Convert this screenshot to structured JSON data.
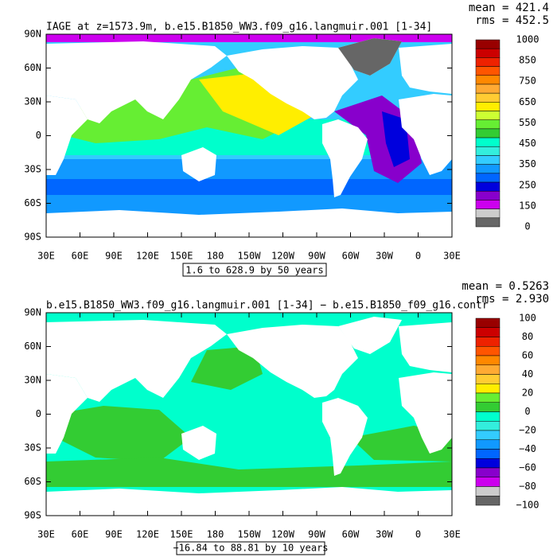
{
  "panels": [
    {
      "title": "IAGE at z=1573.9m, b.e15.B1850_WW3.f09_g16.langmuir.001 [1-34]",
      "mean": "mean = 421.4",
      "rms": "rms = 452.5",
      "range": "1.6 to 628.9 by 50 years",
      "colorbar": {
        "labels": [
          "1000",
          "850",
          "750",
          "650",
          "550",
          "450",
          "350",
          "250",
          "150",
          "0"
        ],
        "colors": [
          "#990000",
          "#cc0000",
          "#ee2200",
          "#ff5500",
          "#ff8800",
          "#ffaa33",
          "#ffcc33",
          "#ffee00",
          "#ccff33",
          "#66ee33",
          "#33cc33",
          "#00ffcc",
          "#33eedd",
          "#33ccff",
          "#1199ff",
          "#0066ff",
          "#0000dd",
          "#8800cc",
          "#cc00ee",
          "#cccccc",
          "#666666"
        ]
      }
    },
    {
      "title": "b.e15.B1850_WW3.f09_g16.langmuir.001 [1-34] − b.e15.B1850_f09_g16.contr",
      "mean": "mean = 0.5263",
      "rms": "rms = 2.930",
      "range": "−16.84 to 88.81 by 10 years",
      "colorbar": {
        "labels": [
          "100",
          "80",
          "60",
          "40",
          "20",
          "0",
          "−20",
          "−40",
          "−60",
          "−80",
          "−100"
        ],
        "colors": [
          "#990000",
          "#cc0000",
          "#ee2200",
          "#ff5500",
          "#ff8800",
          "#ffaa33",
          "#ffcc33",
          "#ffee00",
          "#66ee33",
          "#33cc33",
          "#00ffcc",
          "#33eedd",
          "#33ccff",
          "#1199ff",
          "#0066ff",
          "#0000dd",
          "#8800cc",
          "#cc00ee",
          "#cccccc",
          "#666666"
        ]
      }
    }
  ],
  "lat_labels": [
    "90N",
    "60N",
    "30N",
    "0",
    "30S",
    "60S",
    "90S"
  ],
  "lon_labels": [
    "30E",
    "60E",
    "90E",
    "120E",
    "150E",
    "180",
    "150W",
    "120W",
    "90W",
    "60W",
    "30W",
    "0",
    "30E"
  ]
}
